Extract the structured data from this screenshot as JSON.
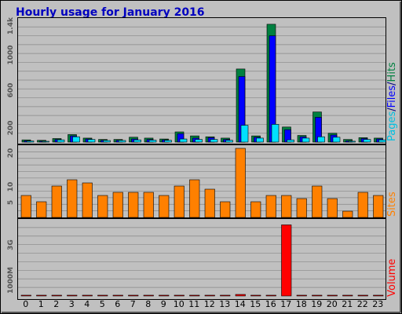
{
  "colors": {
    "background": "#c0c0c0",
    "plot_bg": "#c0c0c0",
    "title": "#0000c0",
    "hits": "#008040",
    "files": "#0000ff",
    "pages": "#00e0ff",
    "sites": "#ff8000",
    "volume": "#ff0000",
    "grid": "#888888"
  },
  "chart_data": [
    {
      "type": "bar",
      "title": "Hourly usage for January 2016",
      "ylim": [
        0,
        1400
      ],
      "y_ticks": [
        "200",
        "600",
        "1000",
        "1.4k"
      ],
      "legend_label_parts": [
        "Pages",
        "/",
        "Files",
        "/",
        "Hits"
      ],
      "categories": [
        "0",
        "1",
        "2",
        "3",
        "4",
        "5",
        "6",
        "7",
        "8",
        "9",
        "10",
        "11",
        "12",
        "13",
        "14",
        "15",
        "16",
        "17",
        "18",
        "19",
        "20",
        "21",
        "22",
        "23"
      ],
      "series": [
        {
          "name": "Hits",
          "values": [
            25,
            20,
            40,
            85,
            45,
            30,
            30,
            55,
            45,
            35,
            115,
            70,
            60,
            45,
            825,
            70,
            1330,
            170,
            75,
            340,
            100,
            30,
            50,
            45
          ]
        },
        {
          "name": "Files",
          "values": [
            15,
            10,
            30,
            70,
            35,
            20,
            20,
            35,
            30,
            25,
            95,
            45,
            50,
            30,
            740,
            55,
            1200,
            140,
            60,
            280,
            80,
            15,
            40,
            35
          ]
        },
        {
          "name": "Pages",
          "values": [
            12,
            8,
            25,
            60,
            30,
            18,
            18,
            25,
            22,
            20,
            35,
            30,
            30,
            20,
            190,
            45,
            200,
            25,
            45,
            60,
            55,
            10,
            30,
            25
          ]
        }
      ]
    },
    {
      "type": "bar",
      "ylim": [
        0,
        22
      ],
      "y_ticks": [
        "5",
        "10",
        "20"
      ],
      "legend_label": "Sites",
      "categories": [
        "0",
        "1",
        "2",
        "3",
        "4",
        "5",
        "6",
        "7",
        "8",
        "9",
        "10",
        "11",
        "12",
        "13",
        "14",
        "15",
        "16",
        "17",
        "18",
        "19",
        "20",
        "21",
        "22",
        "23"
      ],
      "series": [
        {
          "name": "Sites",
          "values": [
            7,
            5,
            10,
            12,
            11,
            7,
            8,
            8,
            8,
            7,
            10,
            12,
            9,
            5,
            22,
            5,
            7,
            7,
            6,
            10,
            6,
            2,
            8,
            7
          ]
        }
      ]
    },
    {
      "type": "bar",
      "ylim": [
        0,
        3.8
      ],
      "y_ticks": [
        "1000M",
        "3G"
      ],
      "legend_label": "Volume",
      "categories": [
        "0",
        "1",
        "2",
        "3",
        "4",
        "5",
        "6",
        "7",
        "8",
        "9",
        "10",
        "11",
        "12",
        "13",
        "14",
        "15",
        "16",
        "17",
        "18",
        "19",
        "20",
        "21",
        "22",
        "23"
      ],
      "series": [
        {
          "name": "Volume",
          "values": [
            0.02,
            0.02,
            0.02,
            0.02,
            0.02,
            0.02,
            0.02,
            0.02,
            0.02,
            0.02,
            0.02,
            0.02,
            0.02,
            0.02,
            0.08,
            0.02,
            0.03,
            3.7,
            0.02,
            0.02,
            0.02,
            0.02,
            0.02,
            0.02
          ]
        }
      ]
    }
  ]
}
